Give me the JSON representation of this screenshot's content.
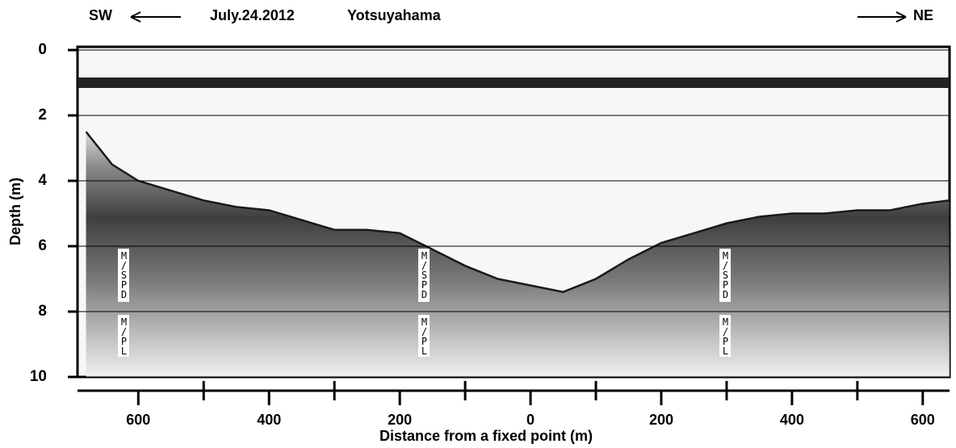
{
  "chart_data": {
    "type": "area",
    "title_left": "SW",
    "title_right": "NE",
    "date": "July.24.2012",
    "place": "Yotsuyahama",
    "ylabel": "Depth (m)",
    "xlabel": "Distance from a fixed point (m)",
    "x": [
      -680,
      -640,
      -600,
      -550,
      -500,
      -450,
      -400,
      -350,
      -300,
      -250,
      -200,
      -150,
      -100,
      -50,
      0,
      50,
      100,
      150,
      200,
      250,
      300,
      350,
      400,
      450,
      500,
      550,
      600,
      641
    ],
    "series": [
      {
        "color": "#1a1a1a",
        "values": [
          2.5,
          3.5,
          4.0,
          4.3,
          4.6,
          4.8,
          4.9,
          5.2,
          5.5,
          5.5,
          5.6,
          6.1,
          6.6,
          7.0,
          7.2,
          7.4,
          7.0,
          6.4,
          5.9,
          5.6,
          5.3,
          5.1,
          5.0,
          5.0,
          4.9,
          4.9,
          4.7,
          4.6
        ]
      }
    ],
    "xlim": [
      -693,
      641
    ],
    "ylim": [
      0,
      10
    ],
    "xticks": [
      {
        "value": -600,
        "label": "600"
      },
      {
        "value": -400,
        "label": "400"
      },
      {
        "value": -200,
        "label": "200"
      },
      0,
      200,
      400,
      600
    ],
    "xminorticks": [
      -500,
      -300,
      -100,
      100,
      300,
      500
    ],
    "yticks": [
      0,
      2,
      4,
      6,
      8,
      10
    ],
    "grid": true,
    "annotations": [
      "M/SPD",
      "M/PL",
      "M/SPD",
      "M/PL",
      "M/SPD",
      "M/PL"
    ]
  }
}
